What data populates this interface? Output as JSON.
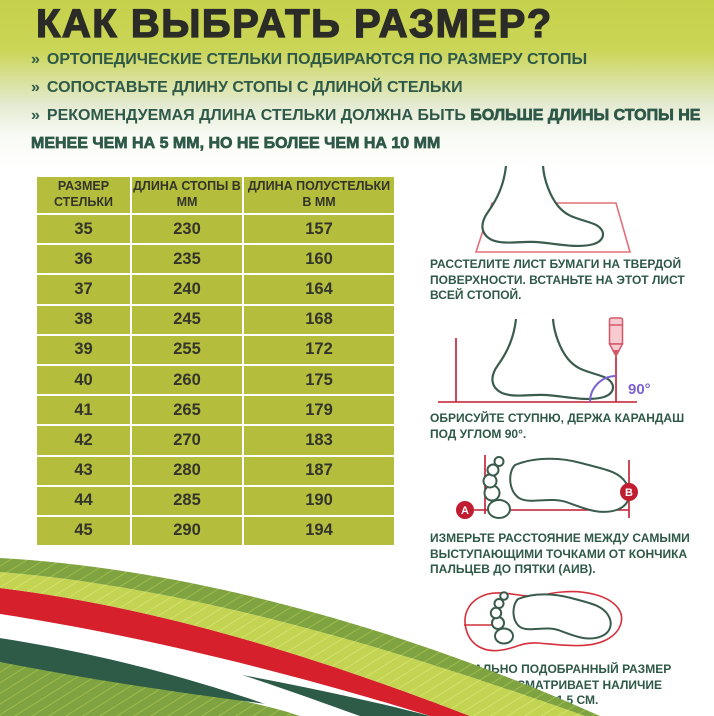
{
  "title": "КАК ВЫБРАТЬ РАЗМЕР?",
  "bullets": {
    "marker": "»",
    "item1": "ОРТОПЕДИЧЕСКИЕ СТЕЛЬКИ ПОДБИРАЮТСЯ ПО РАЗМЕРУ СТОПЫ",
    "item2": "СОПОСТАВЬТЕ ДЛИНУ СТОПЫ С ДЛИНОЙ СТЕЛЬКИ",
    "item3_normal": "РЕКОМЕНДУЕМАЯ ДЛИНА СТЕЛЬКИ ДОЛЖНА БЫТЬ ",
    "item3_strong": "БОЛЬШЕ ДЛИНЫ СТОПЫ НЕ МЕНЕЕ ЧЕМ НА 5 ММ, НО НЕ БОЛЕЕ ЧЕМ НА 10 ММ"
  },
  "size_table": {
    "headers": [
      "РАЗМЕР СТЕЛЬКИ",
      "ДЛИНА СТОПЫ В ММ",
      "ДЛИНА ПОЛУСТЕЛЬКИ В ММ"
    ],
    "rows": [
      [
        "35",
        "230",
        "157"
      ],
      [
        "36",
        "235",
        "160"
      ],
      [
        "37",
        "240",
        "164"
      ],
      [
        "38",
        "245",
        "168"
      ],
      [
        "39",
        "255",
        "172"
      ],
      [
        "40",
        "260",
        "175"
      ],
      [
        "41",
        "265",
        "179"
      ],
      [
        "42",
        "270",
        "183"
      ],
      [
        "43",
        "280",
        "187"
      ],
      [
        "44",
        "285",
        "190"
      ],
      [
        "45",
        "290",
        "194"
      ]
    ]
  },
  "steps": [
    {
      "illustration": "foot-on-paper",
      "text": "РАССТЕЛИТЕ ЛИСТ БУМАГИ НА ТВЕРДОЙ ПОВЕРХНОСТИ. ВСТАНЬТЕ НА ЭТОТ ЛИСТ ВСЕЙ СТОПОЙ."
    },
    {
      "illustration": "trace-foot-with-pencil",
      "angle_label": "90°",
      "text": "ОБРИСУЙТЕ СТУПНЮ, ДЕРЖА КАРАНДАШ ПОД УГЛОМ 90°."
    },
    {
      "illustration": "measure-footprint",
      "point_a": "А",
      "point_b": "В",
      "text": "ИЗМЕРЬТЕ РАССТОЯНИЕ МЕЖДУ САМЫМИ ВЫСТУПАЮЩИМИ ТОЧКАМИ ОТ КОНЧИКА ПАЛЬЦЕВ ДО ПЯТКИ (АИВ)."
    },
    {
      "illustration": "insole-free-zones",
      "text": "ОПТИМАЛЬНО ПОДОБРАННЫЙ РАЗМЕР ОБУВИ ПРЕДУСМАТРИВАЕТ НАЛИЧИЕ СВОБОДНЫХ ЗОН 1–1,5 СМ."
    }
  ],
  "colors": {
    "hero_green": "#c5d14b",
    "table_olive": "#b5bd3c",
    "dark_green_text": "#2e5848",
    "foot_outline": "#3a5c4c",
    "measure_red": "#c41c30",
    "stripe_red": "#d6202c",
    "stripe_dark_green": "#2d5b47",
    "wave_green": "#7fa341",
    "wave_light_green": "#c3d352",
    "angle_purple": "#7d63d1"
  }
}
